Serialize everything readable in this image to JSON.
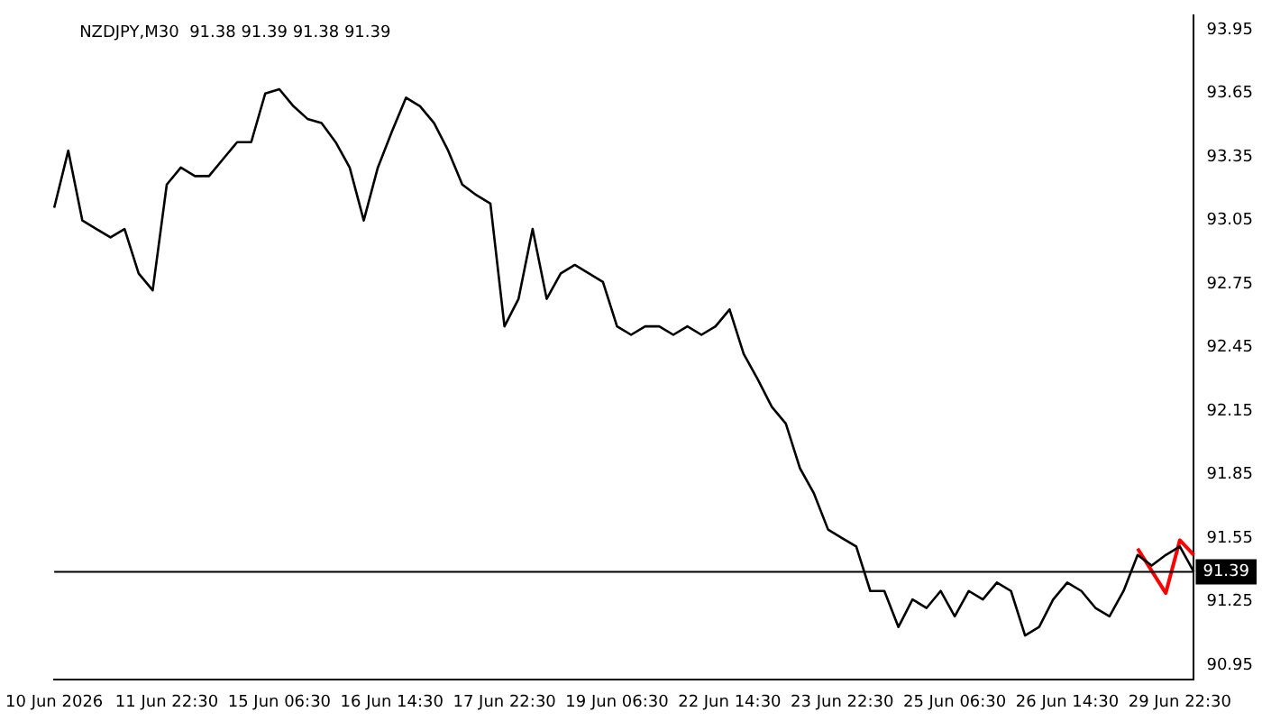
{
  "chart_data": {
    "type": "line",
    "title": "NZDJPY,M30  91.38 91.39 91.38 91.39",
    "categories": [
      "10 Jun 2026",
      null,
      null,
      null,
      null,
      null,
      null,
      null,
      "11 Jun 22:30",
      null,
      null,
      null,
      null,
      null,
      null,
      null,
      "15 Jun 06:30",
      null,
      null,
      null,
      null,
      null,
      null,
      null,
      "16 Jun 14:30",
      null,
      null,
      null,
      null,
      null,
      null,
      null,
      "17 Jun 22:30",
      null,
      null,
      null,
      null,
      null,
      null,
      null,
      "19 Jun 06:30",
      null,
      null,
      null,
      null,
      null,
      null,
      null,
      "22 Jun 14:30",
      null,
      null,
      null,
      null,
      null,
      null,
      null,
      "23 Jun 22:30",
      null,
      null,
      null,
      null,
      null,
      null,
      null,
      "25 Jun 06:30",
      null,
      null,
      null,
      null,
      null,
      null,
      null,
      "26 Jun 14:30",
      null,
      null,
      null,
      null,
      null,
      null,
      null,
      "29 Jun 22:30",
      null
    ],
    "series": [
      {
        "color": "#000000",
        "values": [
          93.11,
          93.38,
          93.05,
          93.01,
          92.97,
          93.01,
          92.8,
          92.72,
          93.22,
          93.3,
          93.26,
          93.26,
          93.34,
          93.42,
          93.42,
          93.65,
          93.67,
          93.59,
          93.53,
          93.51,
          93.42,
          93.3,
          93.05,
          93.3,
          93.47,
          93.63,
          93.59,
          93.51,
          93.38,
          93.22,
          93.17,
          93.13,
          92.55,
          92.68,
          93.01,
          92.68,
          92.8,
          92.84,
          92.8,
          92.76,
          92.55,
          92.51,
          92.55,
          92.55,
          92.51,
          92.55,
          92.51,
          92.55,
          92.63,
          92.42,
          92.3,
          92.17,
          92.09,
          91.88,
          91.76,
          91.59,
          91.55,
          91.51,
          91.3,
          91.3,
          91.13,
          91.26,
          91.22,
          91.3,
          91.18,
          91.3,
          91.26,
          91.34,
          91.3,
          91.09,
          91.13,
          91.26,
          91.34,
          91.3,
          91.22,
          91.18,
          91.3,
          91.47,
          91.42,
          91.47,
          91.51,
          91.39
        ]
      },
      {
        "color": "#ff0000",
        "values": [
          null,
          null,
          null,
          null,
          null,
          null,
          null,
          null,
          null,
          null,
          null,
          null,
          null,
          null,
          null,
          null,
          null,
          null,
          null,
          null,
          null,
          null,
          null,
          null,
          null,
          null,
          null,
          null,
          null,
          null,
          null,
          null,
          null,
          null,
          null,
          null,
          null,
          null,
          null,
          null,
          null,
          null,
          null,
          null,
          null,
          null,
          null,
          null,
          null,
          null,
          null,
          null,
          null,
          null,
          null,
          null,
          null,
          null,
          null,
          null,
          null,
          null,
          null,
          null,
          null,
          null,
          null,
          null,
          null,
          null,
          null,
          null,
          null,
          null,
          null,
          null,
          null,
          91.5,
          null,
          91.29,
          91.54,
          91.47
        ]
      }
    ],
    "ylim": [
      90.88,
      94.02
    ],
    "yticks": [
      90.95,
      91.25,
      91.55,
      91.85,
      92.15,
      92.45,
      92.75,
      93.05,
      93.35,
      93.65,
      93.95
    ],
    "ref_lines": [
      {
        "axis": "y",
        "value": 91.39,
        "label": "91.39",
        "color": "#000000"
      }
    ],
    "grid": false,
    "legend": false,
    "marker": "none"
  }
}
